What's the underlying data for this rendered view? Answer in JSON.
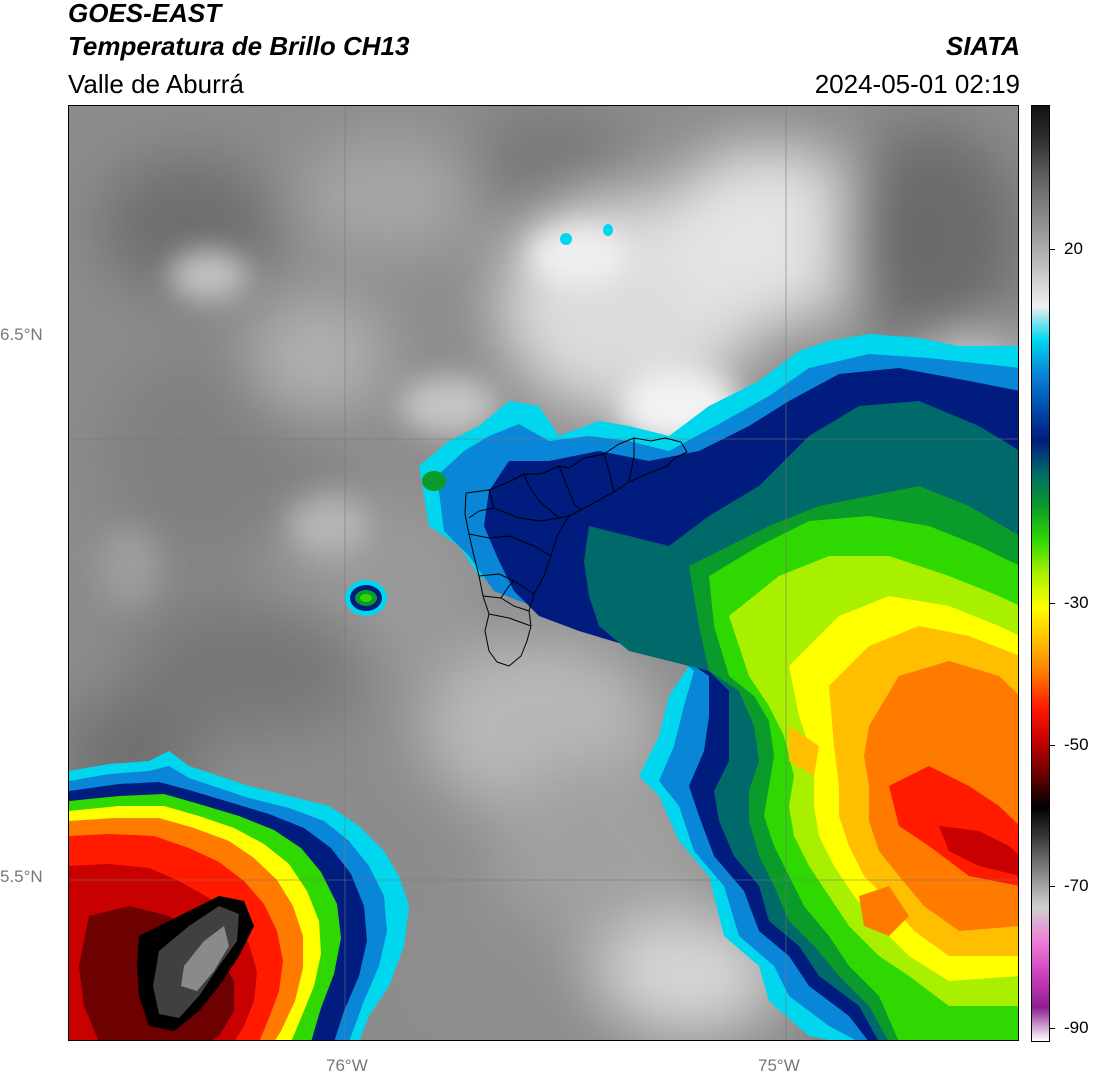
{
  "header": {
    "satellite": "GOES-EAST",
    "product": "Temperatura de Brillo CH13",
    "region": "Valle de Aburrá",
    "agency": "SIATA",
    "datetime": "2024-05-01 02:19"
  },
  "map": {
    "lat_ticks": [
      "6.5°N",
      "5.5°N"
    ],
    "lon_ticks": [
      "76°W",
      "75°W"
    ]
  },
  "colorbar": {
    "ticks": [
      "20",
      "-30",
      "-50",
      "-70",
      "-90"
    ],
    "stops": [
      {
        "c": "#ffffff"
      },
      {
        "c": "#8e1f90"
      },
      {
        "c": "#cf3fbf"
      },
      {
        "c": "#ee80d6"
      },
      {
        "c": "#d0d0d0"
      },
      {
        "c": "#8a8a8a"
      },
      {
        "c": "#404040"
      },
      {
        "c": "#000000"
      },
      {
        "c": "#6d0000"
      },
      {
        "c": "#c80000"
      },
      {
        "c": "#ff1a00"
      },
      {
        "c": "#ff7b00"
      },
      {
        "c": "#ffbf00"
      },
      {
        "c": "#ffff00"
      },
      {
        "c": "#a8ef00"
      },
      {
        "c": "#2fd800"
      },
      {
        "c": "#0b9b2a"
      },
      {
        "c": "#006a6a"
      },
      {
        "c": "#001c7e"
      },
      {
        "c": "#0050b0"
      },
      {
        "c": "#0a86d8"
      },
      {
        "c": "#00d7ee"
      },
      {
        "c": "#efefef"
      },
      {
        "c": "#c8c8c8"
      },
      {
        "c": "#a0a0a0"
      },
      {
        "c": "#808080"
      },
      {
        "c": "#5a5a5a"
      },
      {
        "c": "#303030"
      },
      {
        "c": "#111111"
      }
    ]
  }
}
